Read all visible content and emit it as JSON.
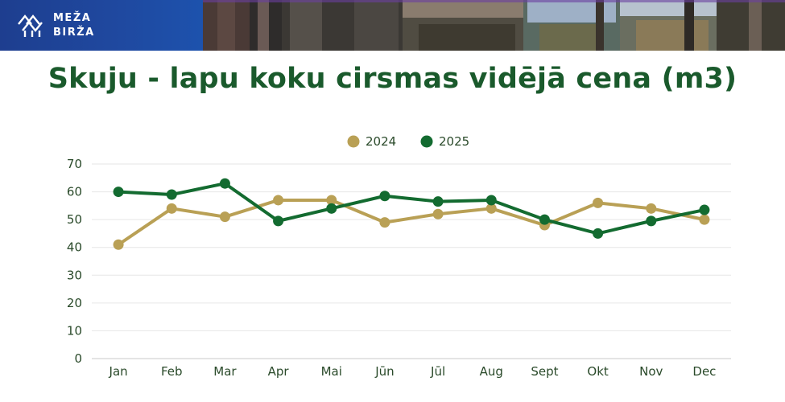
{
  "brand": {
    "line1": "MEŽA",
    "line2": "BIRŽA"
  },
  "chart_data": {
    "type": "line",
    "title": "Skuju - lapu koku cirsmas vidējā cena (m3)",
    "categories": [
      "Jan",
      "Feb",
      "Mar",
      "Apr",
      "Mai",
      "Jūn",
      "Jūl",
      "Aug",
      "Sept",
      "Okt",
      "Nov",
      "Dec"
    ],
    "series": [
      {
        "name": "2024",
        "color": "#b9a055",
        "values": [
          41,
          54,
          51,
          57,
          57,
          49,
          52,
          54,
          48,
          56,
          54,
          50
        ]
      },
      {
        "name": "2025",
        "color": "#136b30",
        "values": [
          60,
          59,
          63,
          49.5,
          54,
          58.5,
          56.5,
          57,
          50,
          45,
          49.5,
          53.5
        ]
      }
    ],
    "ylim": [
      0,
      70
    ],
    "yticks": [
      "0",
      "10",
      "20",
      "30",
      "40",
      "50",
      "60",
      "70"
    ],
    "grid": true,
    "legend": "top-center",
    "xlabel": "",
    "ylabel": ""
  }
}
